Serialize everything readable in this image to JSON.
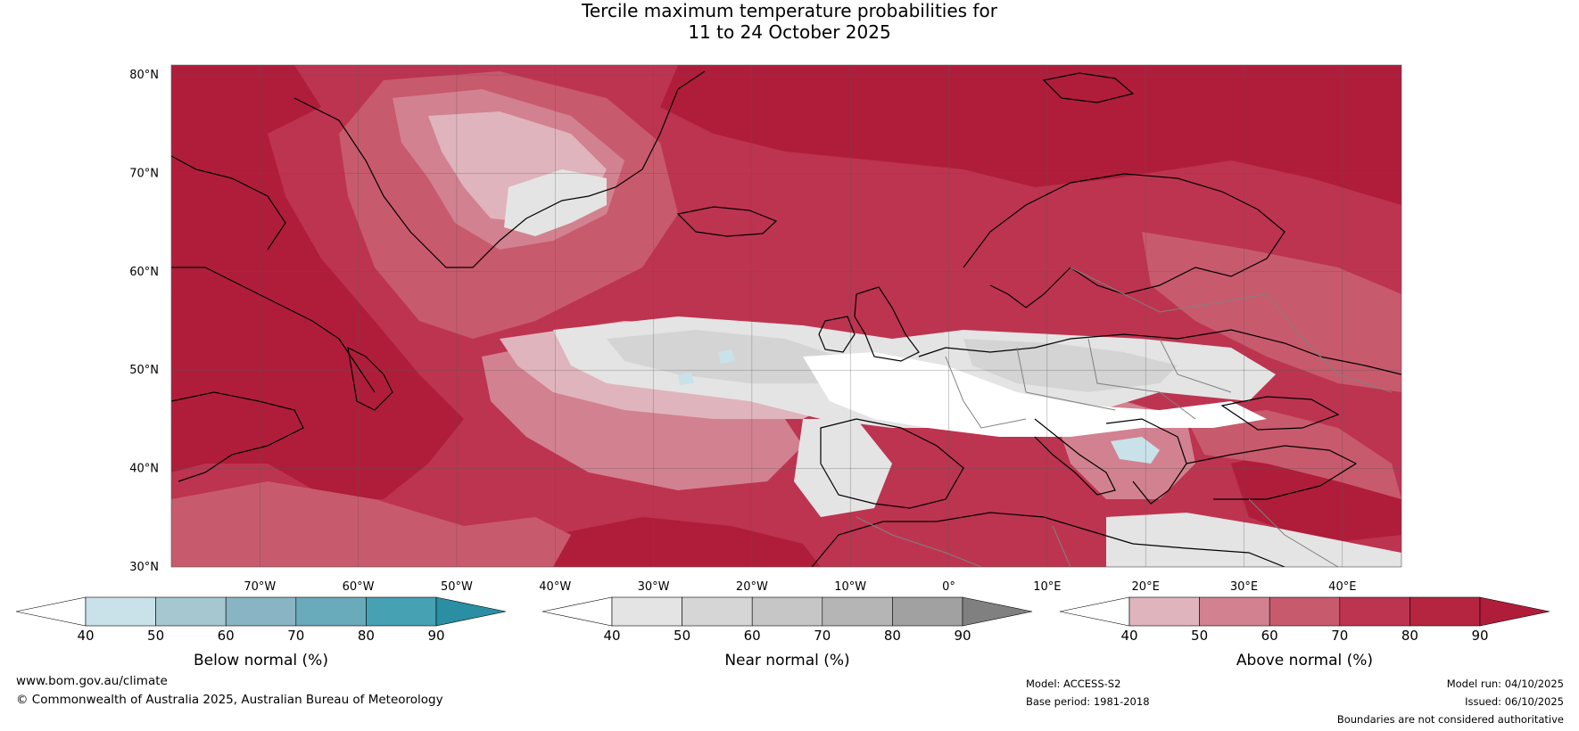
{
  "title": {
    "line1": "Tercile maximum temperature probabilities for",
    "line2": "11 to 24 October 2025"
  },
  "map": {
    "projection": "plate-carree",
    "lon_range": [
      -79,
      46
    ],
    "lat_range": [
      30,
      81
    ],
    "lat_ticks": [
      {
        "value": 80,
        "label": "80°N"
      },
      {
        "value": 70,
        "label": "70°N"
      },
      {
        "value": 60,
        "label": "60°N"
      },
      {
        "value": 50,
        "label": "50°N"
      },
      {
        "value": 40,
        "label": "40°N"
      },
      {
        "value": 30,
        "label": "30°N"
      }
    ],
    "lon_ticks": [
      {
        "value": -70,
        "label": "70°W"
      },
      {
        "value": -60,
        "label": "60°W"
      },
      {
        "value": -50,
        "label": "50°W"
      },
      {
        "value": -40,
        "label": "40°W"
      },
      {
        "value": -30,
        "label": "30°W"
      },
      {
        "value": -20,
        "label": "20°W"
      },
      {
        "value": -10,
        "label": "10°W"
      },
      {
        "value": 0,
        "label": "0°"
      },
      {
        "value": 10,
        "label": "10°E"
      },
      {
        "value": 20,
        "label": "20°E"
      },
      {
        "value": 30,
        "label": "30°E"
      },
      {
        "value": 40,
        "label": "40°E"
      }
    ],
    "field_colors": {
      "above_90": "#b01d3b",
      "above_80": "#bd3450",
      "above_70": "#c85a6d",
      "above_60": "#d28190",
      "above_50": "#e0b4bd",
      "near_40": "#ffffff",
      "near_50": "#e4e4e4",
      "near_60": "#d4d4d4",
      "below_50": "#c9e2ea"
    },
    "coastline_color": "#000000",
    "border_color": "#808080"
  },
  "colorbars": [
    {
      "label": "Below normal (%)",
      "ticks": [
        "40",
        "50",
        "60",
        "70",
        "80",
        "90"
      ],
      "colors": [
        "#ffffff",
        "#c9e2ea",
        "#a7c7d0",
        "#89b4c3",
        "#69aabb",
        "#46a1b3",
        "#2b8fa3"
      ]
    },
    {
      "label": "Near normal (%)",
      "ticks": [
        "40",
        "50",
        "60",
        "70",
        "80",
        "90"
      ],
      "colors": [
        "#ffffff",
        "#e4e4e4",
        "#d6d6d6",
        "#c6c6c6",
        "#b5b5b5",
        "#a1a1a1",
        "#808080"
      ]
    },
    {
      "label": "Above normal (%)",
      "ticks": [
        "40",
        "50",
        "60",
        "70",
        "80",
        "90"
      ],
      "colors": [
        "#ffffff",
        "#e0b4bd",
        "#d28190",
        "#c85a6d",
        "#bd3450",
        "#b5253f",
        "#b01d3b"
      ]
    }
  ],
  "footer": {
    "website": "www.bom.gov.au/climate",
    "copyright": "© Commonwealth of Australia 2025, Australian Bureau of Meteorology",
    "model": "Model: ACCESS-S2",
    "base_period": "Base period: 1981-2018",
    "model_run": "Model run: 04/10/2025",
    "issued": "Issued: 06/10/2025",
    "disclaimer": "Boundaries are not considered authoritative"
  }
}
